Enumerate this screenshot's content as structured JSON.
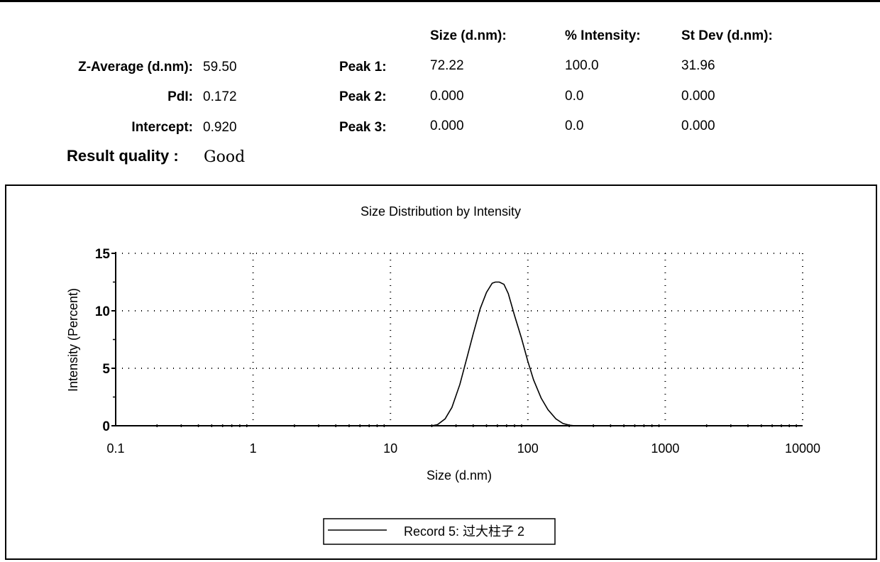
{
  "summary": {
    "z_average_label": "Z-Average (d.nm):",
    "z_average_value": "59.50",
    "pdi_label": "PdI:",
    "pdi_value": "0.172",
    "intercept_label": "Intercept:",
    "intercept_value": "0.920",
    "result_quality_label": "Result quality :",
    "result_quality_value": "Good"
  },
  "peaks_table": {
    "headers": [
      "Size (d.nm):",
      "% Intensity:",
      "St Dev (d.nm):"
    ],
    "rows": [
      {
        "label": "Peak 1:",
        "size": "72.22",
        "intensity": "100.0",
        "stdev": "31.96"
      },
      {
        "label": "Peak 2:",
        "size": "0.000",
        "intensity": "0.0",
        "stdev": "0.000"
      },
      {
        "label": "Peak 3:",
        "size": "0.000",
        "intensity": "0.0",
        "stdev": "0.000"
      }
    ]
  },
  "chart_data": {
    "type": "line",
    "title": "Size Distribution by Intensity",
    "xlabel": "Size (d.nm)",
    "ylabel": "Intensity (Percent)",
    "xscale": "log",
    "xlim": [
      0.1,
      10000
    ],
    "ylim": [
      0,
      15
    ],
    "xticks": [
      "0.1",
      "1",
      "10",
      "100",
      "1000",
      "10000"
    ],
    "yticks": [
      "0",
      "5",
      "10",
      "15"
    ],
    "grid": "dotted",
    "legend_position": "bottom",
    "series": [
      {
        "name": "Record 5: 过大柱子 2",
        "color": "#000000",
        "x": [
          20,
          22,
          25,
          28,
          32,
          36,
          40,
          45,
          50,
          55,
          58,
          62,
          67,
          72,
          80,
          90,
          100,
          110,
          125,
          140,
          160,
          180,
          200,
          220,
          240
        ],
        "y": [
          0.0,
          0.1,
          0.6,
          1.6,
          3.6,
          5.9,
          8.0,
          10.2,
          11.6,
          12.4,
          12.5,
          12.5,
          12.3,
          11.5,
          9.6,
          7.6,
          5.6,
          4.0,
          2.4,
          1.4,
          0.6,
          0.2,
          0.05,
          0.0,
          0.0
        ]
      }
    ]
  }
}
